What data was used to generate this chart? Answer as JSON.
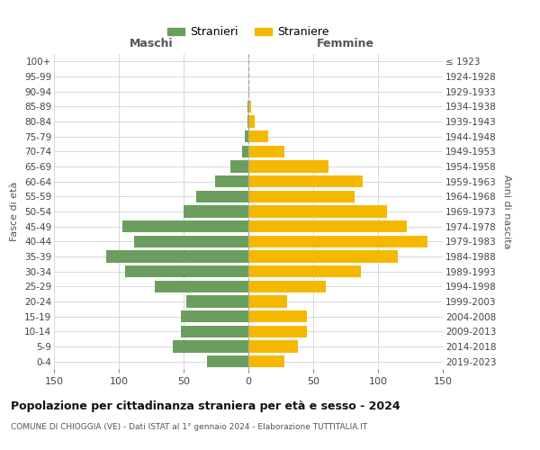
{
  "age_groups_bottom_to_top": [
    "0-4",
    "5-9",
    "10-14",
    "15-19",
    "20-24",
    "25-29",
    "30-34",
    "35-39",
    "40-44",
    "45-49",
    "50-54",
    "55-59",
    "60-64",
    "65-69",
    "70-74",
    "75-79",
    "80-84",
    "85-89",
    "90-94",
    "95-99",
    "100+"
  ],
  "birth_years_bottom_to_top": [
    "2019-2023",
    "2014-2018",
    "2009-2013",
    "2004-2008",
    "1999-2003",
    "1994-1998",
    "1989-1993",
    "1984-1988",
    "1979-1983",
    "1974-1978",
    "1969-1973",
    "1964-1968",
    "1959-1963",
    "1954-1958",
    "1949-1953",
    "1944-1948",
    "1939-1943",
    "1934-1938",
    "1929-1933",
    "1924-1928",
    "≤ 1923"
  ],
  "maschi_bottom_to_top": [
    32,
    58,
    52,
    52,
    48,
    72,
    95,
    110,
    88,
    97,
    50,
    40,
    26,
    14,
    5,
    3,
    1,
    1,
    0,
    0,
    0
  ],
  "femmine_bottom_to_top": [
    28,
    38,
    45,
    45,
    30,
    60,
    87,
    115,
    138,
    122,
    107,
    82,
    88,
    62,
    28,
    15,
    5,
    2,
    1,
    0,
    0
  ],
  "maschi_color": "#6b9e5e",
  "femmine_color": "#f5b800",
  "title": "Popolazione per cittadinanza straniera per età e sesso - 2024",
  "subtitle": "COMUNE DI CHIOGGIA (VE) - Dati ISTAT al 1° gennaio 2024 - Elaborazione TUTTITALIA.IT",
  "xlabel_left": "Maschi",
  "xlabel_right": "Femmine",
  "ylabel_left": "Fasce di età",
  "ylabel_right": "Anni di nascita",
  "legend_maschi": "Stranieri",
  "legend_femmine": "Straniere",
  "xlim": 150,
  "background_color": "#ffffff",
  "grid_color": "#d8d8d8"
}
